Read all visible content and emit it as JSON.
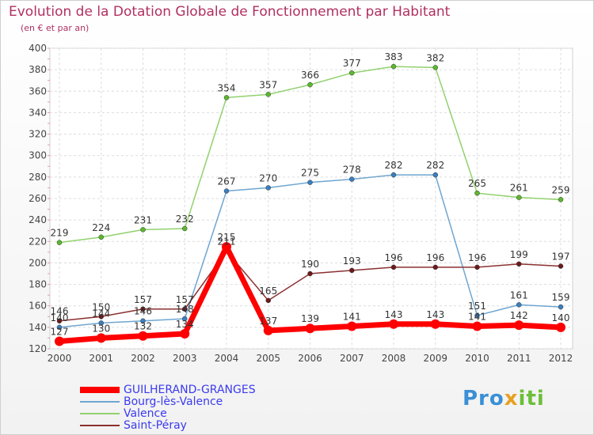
{
  "header": {
    "title": "Evolution de la Dotation Globale de Fonctionnement par Habitant",
    "subtitle": "(en € et par an)"
  },
  "logo": {
    "text_p": "Pro",
    "text_x": "x",
    "text_i": "iti"
  },
  "chart_data": {
    "type": "line",
    "title": "Evolution de la Dotation Globale de Fonctionnement par Habitant",
    "subtitle": "(en € et par an)",
    "xlabel": "",
    "ylabel": "",
    "ylim": [
      120,
      400
    ],
    "y_ticks": [
      120,
      140,
      160,
      180,
      200,
      220,
      240,
      260,
      280,
      300,
      320,
      340,
      360,
      380,
      400
    ],
    "categories": [
      "2000",
      "2001",
      "2002",
      "2003",
      "2004",
      "2005",
      "2006",
      "2007",
      "2008",
      "2009",
      "2010",
      "2011",
      "2012"
    ],
    "grid": true,
    "legend_position": "bottom-left",
    "series": [
      {
        "name": "Valence",
        "color": "#92d16e",
        "marker": "#5cb82e",
        "width": 1.5,
        "values": [
          219,
          224,
          231,
          232,
          354,
          357,
          366,
          377,
          383,
          382,
          265,
          261,
          259
        ],
        "labels": [
          "219",
          "224",
          "231",
          "232",
          "354",
          "357",
          "366",
          "377",
          "383",
          "382",
          "265",
          "261",
          "259"
        ]
      },
      {
        "name": "Bourg-lès-Valence",
        "color": "#6fa6d0",
        "marker": "#3a7fc0",
        "width": 1.5,
        "values": [
          140,
          144,
          146,
          148,
          267,
          270,
          275,
          278,
          282,
          282,
          151,
          161,
          159
        ],
        "labels": [
          "140",
          "144",
          "146",
          "148",
          "267",
          "270",
          "275",
          "278",
          "282",
          "282",
          "151",
          "161",
          "159"
        ]
      },
      {
        "name": "Saint-Péray",
        "color": "#8b3030",
        "marker": "#6b1a1a",
        "width": 1.5,
        "values": [
          146,
          150,
          157,
          157,
          211,
          165,
          190,
          193,
          196,
          196,
          196,
          199,
          197
        ],
        "labels": [
          "146",
          "150",
          "157",
          "157",
          "211",
          "165",
          "190",
          "193",
          "196",
          "196",
          "196",
          "199",
          "197"
        ]
      },
      {
        "name": "GUILHERAND-GRANGES",
        "color": "#ff0000",
        "marker": "#ff0000",
        "width": 7,
        "values": [
          127,
          130,
          132,
          134,
          215,
          137,
          139,
          141,
          143,
          143,
          141,
          142,
          140
        ],
        "labels": [
          "127",
          "130",
          "132",
          "134",
          "215",
          "137",
          "139",
          "141",
          "143",
          "143",
          "141",
          "142",
          "140"
        ]
      }
    ],
    "legend_order": [
      "GUILHERAND-GRANGES",
      "Bourg-lès-Valence",
      "Valence",
      "Saint-Péray"
    ]
  }
}
